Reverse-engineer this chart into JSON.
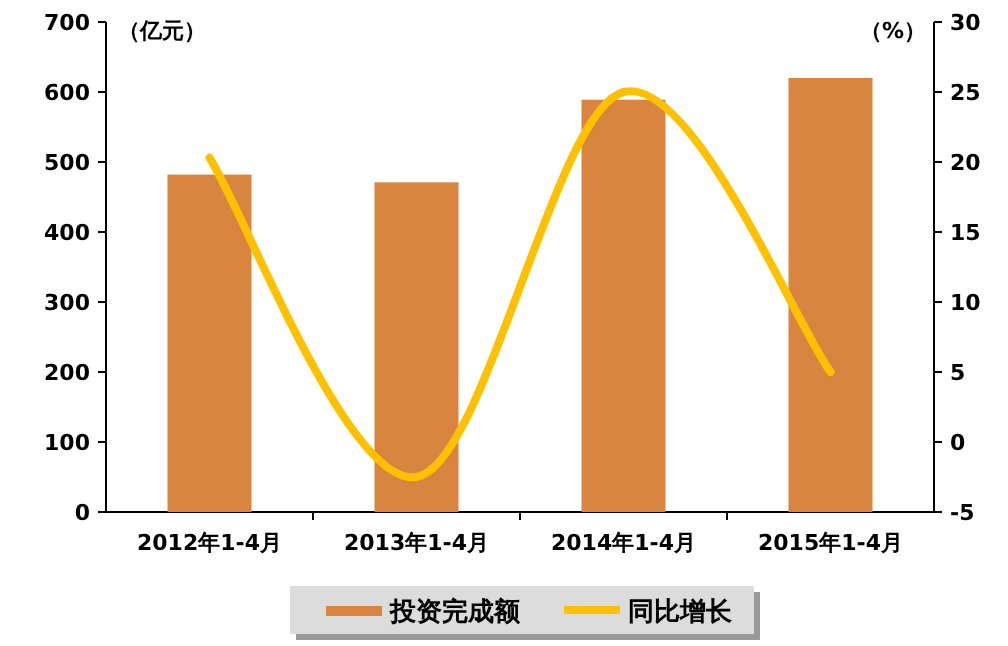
{
  "chart_data": {
    "type": "bar",
    "ylabel": "（亿元）",
    "y2label": "（%）",
    "categories": [
      "2012年1-4月",
      "2013年1-4月",
      "2014年1-4月",
      "2015年1-4月"
    ],
    "series": [
      {
        "name": "投资完成额",
        "color": "#d9843f",
        "values": [
          482,
          471,
          589,
          620
        ]
      },
      {
        "name": "同比增长",
        "type": "line",
        "axis": "y2",
        "color": "#ffc000",
        "values": [
          20.3,
          -2.5,
          25.0,
          5.0
        ]
      }
    ],
    "ylim": [
      0,
      700
    ],
    "yticks": [
      0,
      100,
      200,
      300,
      400,
      500,
      600,
      700
    ],
    "y2lim": [
      -5,
      30
    ],
    "y2ticks": [
      -5,
      0,
      5,
      10,
      15,
      20,
      25,
      30
    ],
    "legend": "bottom"
  }
}
